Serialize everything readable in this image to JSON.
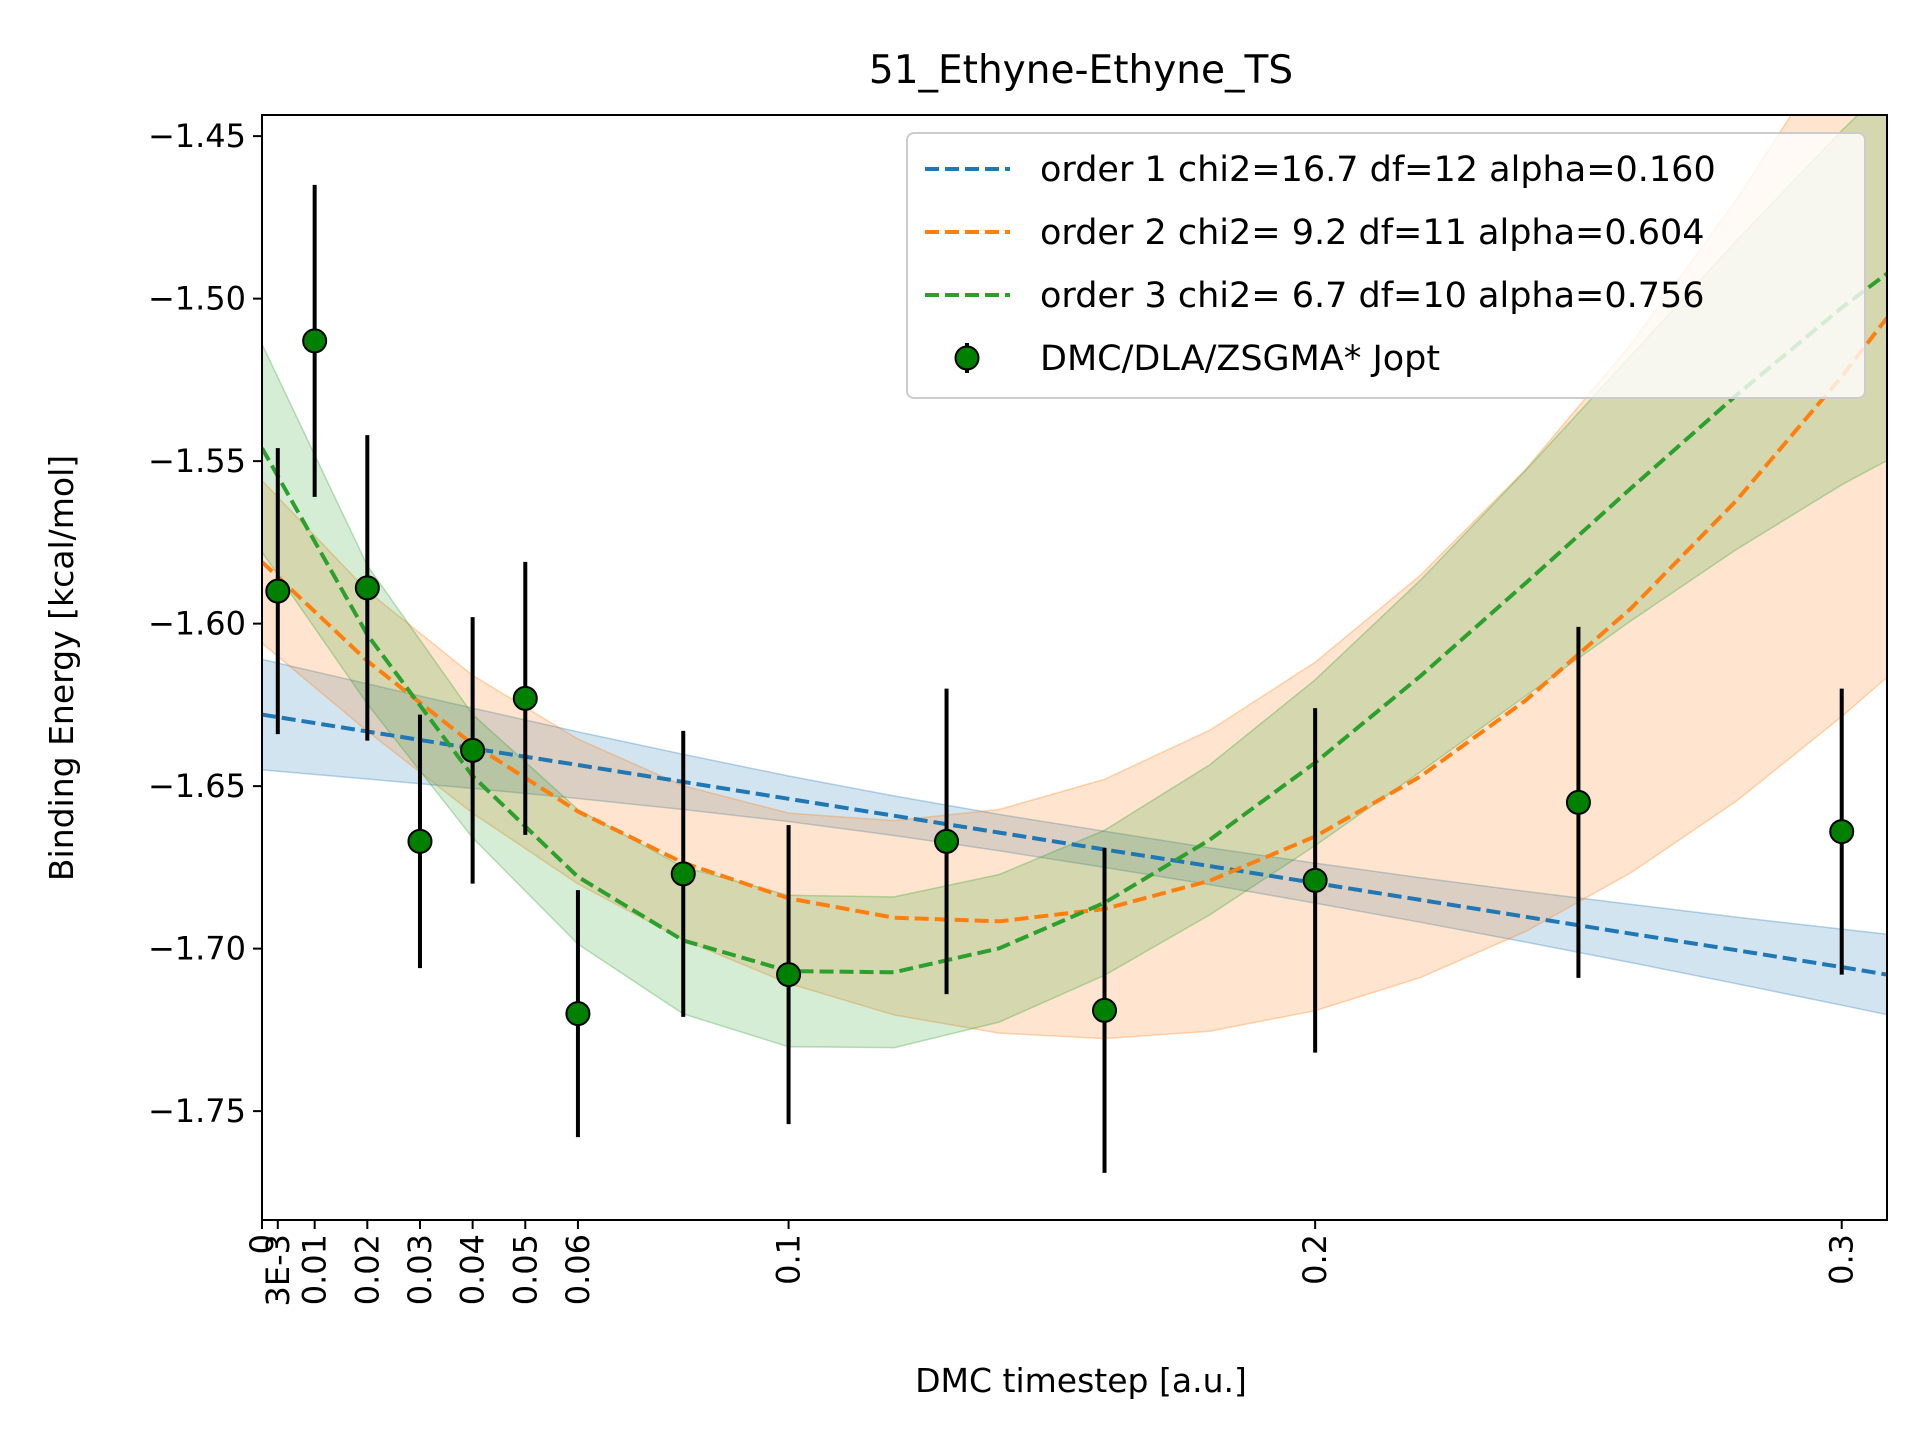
{
  "chart_data": {
    "type": "scatter",
    "title": "51_Ethyne-Ethyne_TS",
    "xlabel": "DMC timestep [a.u.]",
    "ylabel": "Binding Energy [kcal/mol]",
    "xlim": [
      0,
      0.3086
    ],
    "ylim": [
      -1.7835,
      -1.4435
    ],
    "grid": false,
    "legend_position": "upper right",
    "x_ticks": [
      {
        "value": 0,
        "label": "0"
      },
      {
        "value": 0.003,
        "label": "3E-3"
      },
      {
        "value": 0.01,
        "label": "0.01"
      },
      {
        "value": 0.02,
        "label": "0.02"
      },
      {
        "value": 0.03,
        "label": "0.03"
      },
      {
        "value": 0.04,
        "label": "0.04"
      },
      {
        "value": 0.05,
        "label": "0.05"
      },
      {
        "value": 0.06,
        "label": "0.06"
      },
      {
        "value": 0.1,
        "label": "0.1"
      },
      {
        "value": 0.2,
        "label": "0.2"
      },
      {
        "value": 0.3,
        "label": "0.3"
      }
    ],
    "y_ticks": [
      {
        "value": -1.45,
        "label": "−1.45"
      },
      {
        "value": -1.5,
        "label": "−1.50"
      },
      {
        "value": -1.55,
        "label": "−1.55"
      },
      {
        "value": -1.6,
        "label": "−1.60"
      },
      {
        "value": -1.65,
        "label": "−1.65"
      },
      {
        "value": -1.7,
        "label": "−1.70"
      },
      {
        "value": -1.75,
        "label": "−1.75"
      }
    ],
    "data_series": {
      "name": "DMC/DLA/ZSGMA* Jopt",
      "color": "#008000",
      "points": [
        {
          "x": 0.003,
          "y": -1.59,
          "err": 0.044
        },
        {
          "x": 0.01,
          "y": -1.513,
          "err": 0.048
        },
        {
          "x": 0.02,
          "y": -1.589,
          "err": 0.047
        },
        {
          "x": 0.03,
          "y": -1.667,
          "err": 0.039
        },
        {
          "x": 0.04,
          "y": -1.639,
          "err": 0.041
        },
        {
          "x": 0.05,
          "y": -1.623,
          "err": 0.042
        },
        {
          "x": 0.06,
          "y": -1.72,
          "err": 0.038
        },
        {
          "x": 0.08,
          "y": -1.677,
          "err": 0.044
        },
        {
          "x": 0.1,
          "y": -1.708,
          "err": 0.046
        },
        {
          "x": 0.13,
          "y": -1.667,
          "err": 0.047
        },
        {
          "x": 0.16,
          "y": -1.719,
          "err": 0.05
        },
        {
          "x": 0.2,
          "y": -1.679,
          "err": 0.053
        },
        {
          "x": 0.25,
          "y": -1.655,
          "err": 0.054
        },
        {
          "x": 0.3,
          "y": -1.664,
          "err": 0.044
        }
      ]
    },
    "fits": [
      {
        "name": "order 1 chi2=16.7 df=12 alpha=0.160",
        "color": "#1f77b4",
        "x": [
          0,
          0.02,
          0.04,
          0.06,
          0.08,
          0.1,
          0.12,
          0.14,
          0.16,
          0.18,
          0.2,
          0.22,
          0.24,
          0.26,
          0.28,
          0.3,
          0.3086
        ],
        "y": [
          -1.628,
          -1.6332,
          -1.6384,
          -1.6435,
          -1.6487,
          -1.6539,
          -1.6591,
          -1.6643,
          -1.6695,
          -1.6746,
          -1.6798,
          -1.685,
          -1.6902,
          -1.6954,
          -1.7005,
          -1.7057,
          -1.708
        ],
        "lower": [
          -1.645,
          -1.6478,
          -1.6507,
          -1.6538,
          -1.6572,
          -1.6609,
          -1.6652,
          -1.6699,
          -1.675,
          -1.6803,
          -1.686,
          -1.6919,
          -1.698,
          -1.7043,
          -1.7108,
          -1.7174,
          -1.7203
        ],
        "upper": [
          -1.611,
          -1.6185,
          -1.626,
          -1.6333,
          -1.6402,
          -1.6469,
          -1.653,
          -1.6587,
          -1.6639,
          -1.669,
          -1.6737,
          -1.6782,
          -1.6824,
          -1.6864,
          -1.6903,
          -1.694,
          -1.6956
        ]
      },
      {
        "name": "order 2 chi2= 9.2 df=11 alpha=0.604",
        "color": "#ff7f0e",
        "x": [
          0,
          0.02,
          0.04,
          0.06,
          0.08,
          0.1,
          0.12,
          0.14,
          0.16,
          0.18,
          0.2,
          0.22,
          0.24,
          0.26,
          0.28,
          0.3,
          0.3086
        ],
        "y": [
          -1.581,
          -1.6115,
          -1.6371,
          -1.6578,
          -1.6736,
          -1.6845,
          -1.6905,
          -1.6916,
          -1.6878,
          -1.6791,
          -1.6655,
          -1.647,
          -1.6236,
          -1.5953,
          -1.5621,
          -1.524,
          -1.5059
        ],
        "lower": [
          -1.606,
          -1.6331,
          -1.6583,
          -1.6801,
          -1.6973,
          -1.7107,
          -1.7204,
          -1.726,
          -1.7277,
          -1.7254,
          -1.7191,
          -1.7089,
          -1.6947,
          -1.6766,
          -1.6546,
          -1.6286,
          -1.6165
        ],
        "upper": [
          -1.556,
          -1.5899,
          -1.6159,
          -1.6355,
          -1.6499,
          -1.6583,
          -1.6606,
          -1.6572,
          -1.6479,
          -1.6328,
          -1.6119,
          -1.5851,
          -1.5525,
          -1.514,
          -1.4696,
          -1.4194,
          -1.3953
        ]
      },
      {
        "name": "order 3 chi2= 6.7 df=10 alpha=0.756",
        "color": "#2ca02c",
        "x": [
          0,
          0.02,
          0.04,
          0.06,
          0.08,
          0.1,
          0.12,
          0.14,
          0.16,
          0.18,
          0.2,
          0.22,
          0.24,
          0.26,
          0.28,
          0.3,
          0.3086
        ],
        "y": [
          -1.546,
          -1.6034,
          -1.6469,
          -1.6779,
          -1.6975,
          -1.7069,
          -1.7073,
          -1.6999,
          -1.6859,
          -1.6665,
          -1.6428,
          -1.6161,
          -1.5875,
          -1.5583,
          -1.5297,
          -1.5028,
          -1.4923
        ],
        "lower": [
          -1.578,
          -1.6247,
          -1.6659,
          -1.6986,
          -1.7201,
          -1.7302,
          -1.7305,
          -1.7226,
          -1.7082,
          -1.6896,
          -1.6683,
          -1.6456,
          -1.6222,
          -1.5991,
          -1.5772,
          -1.5573,
          -1.5498
        ],
        "upper": [
          -1.514,
          -1.5821,
          -1.6279,
          -1.6572,
          -1.6749,
          -1.6836,
          -1.6841,
          -1.6772,
          -1.6636,
          -1.6434,
          -1.6173,
          -1.5866,
          -1.5528,
          -1.5175,
          -1.4822,
          -1.4483,
          -1.4348
        ]
      }
    ]
  }
}
